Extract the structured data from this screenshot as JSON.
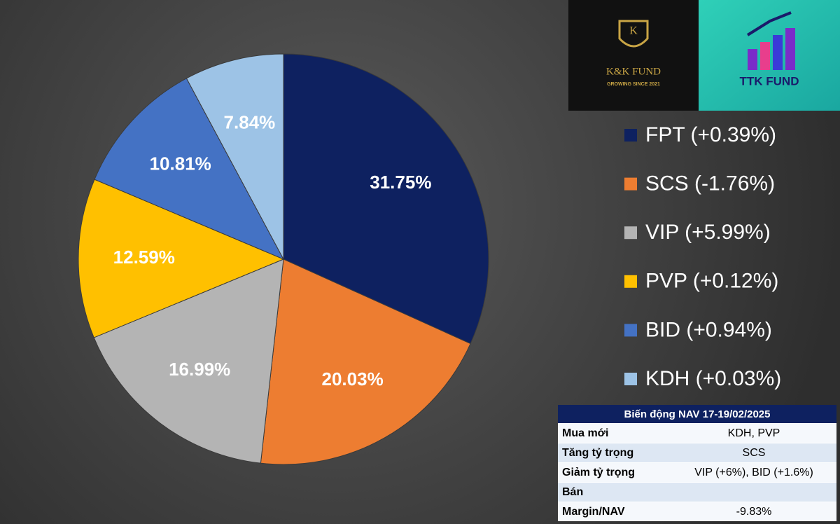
{
  "chart_data": {
    "type": "pie",
    "categories": [
      "FPT (+0.39%)",
      "SCS (-1.76%)",
      "VIP (+5.99%)",
      "PVP (+0.12%)",
      "BID (+0.94%)",
      "KDH (+0.03%)"
    ],
    "values": [
      31.75,
      20.03,
      16.99,
      12.59,
      10.81,
      7.84
    ],
    "value_labels": [
      "31.75%",
      "20.03%",
      "16.99%",
      "12.59%",
      "10.81%",
      "7.84%"
    ],
    "colors": [
      "#0e2160",
      "#ed7d31",
      "#b4b4b4",
      "#ffc000",
      "#4472c4",
      "#9dc3e6"
    ]
  },
  "logos": [
    {
      "name": "K&K FUND",
      "tagline": "GROWING SINCE 2021"
    },
    {
      "name": "TTK FUND"
    }
  ],
  "table": {
    "title": "Biến động NAV 17-19/02/2025",
    "rows": [
      [
        "Mua mới",
        "KDH, PVP"
      ],
      [
        "Tăng tỷ trọng",
        "SCS"
      ],
      [
        "Giảm tỷ trọng",
        "VIP (+6%), BID (+1.6%)"
      ],
      [
        "Bán"
      ],
      [
        "Margin/NAV",
        "-9.83%"
      ]
    ]
  }
}
